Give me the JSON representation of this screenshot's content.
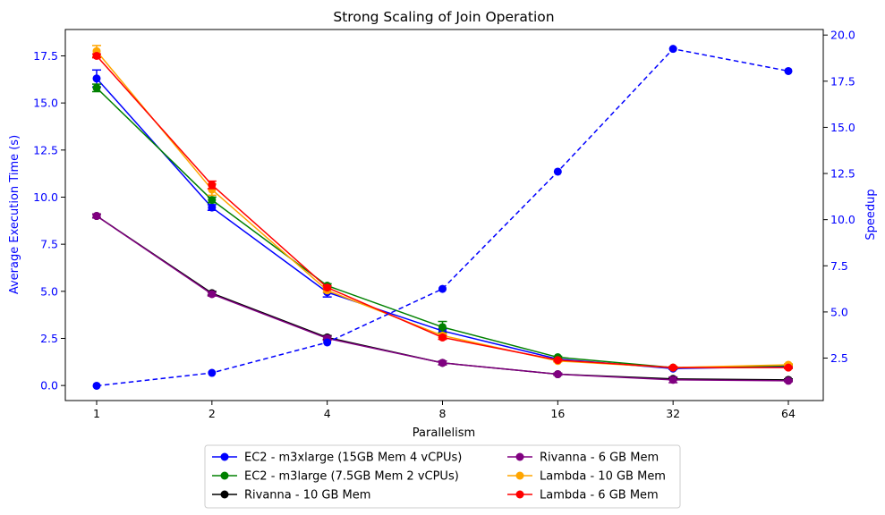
{
  "chart_data": {
    "type": "line",
    "title": "Strong Scaling of Join Operation",
    "xlabel": "Parallelism",
    "ylabel": "Average Execution Time (s)",
    "y2label": "Speedup",
    "x": [
      1,
      2,
      4,
      8,
      16,
      32,
      64
    ],
    "x_tick_labels": [
      "1",
      "2",
      "4",
      "8",
      "16",
      "32",
      "64"
    ],
    "x_scale": "log2",
    "ylim": [
      -0.8,
      18.9
    ],
    "y_ticks": [
      0.0,
      2.5,
      5.0,
      7.5,
      10.0,
      12.5,
      15.0,
      17.5
    ],
    "y_tick_labels": [
      "0.0",
      "2.5",
      "5.0",
      "7.5",
      "10.0",
      "12.5",
      "15.0",
      "17.5"
    ],
    "y2lim": [
      0.2,
      20.3
    ],
    "y2_ticks": [
      2.5,
      5.0,
      7.5,
      10.0,
      12.5,
      15.0,
      17.5,
      20.0
    ],
    "y2_tick_labels": [
      "2.5",
      "5.0",
      "7.5",
      "10.0",
      "12.5",
      "15.0",
      "17.5",
      "20.0"
    ],
    "grid": false,
    "legend_position": "bottom-center-outside",
    "series": [
      {
        "name": "EC2 - m3xlarge (15GB Mem 4 vCPUs)",
        "color": "#0000ff",
        "values": [
          16.3,
          9.45,
          4.95,
          2.9,
          1.4,
          0.9,
          1.0
        ],
        "errors": [
          0.45,
          0.15,
          0.25,
          0.1,
          0.05,
          0.05,
          0.05
        ]
      },
      {
        "name": "EC2 - m3large (7.5GB Mem 2 vCPUs)",
        "color": "#008000",
        "values": [
          15.8,
          9.85,
          5.3,
          3.1,
          1.5,
          0.95,
          1.05
        ],
        "errors": [
          0.2,
          0.15,
          0.1,
          0.3,
          0.05,
          0.05,
          0.05
        ]
      },
      {
        "name": "Rivanna - 10 GB Mem",
        "color": "#000000",
        "values": [
          9.0,
          4.9,
          2.55,
          1.2,
          0.6,
          0.35,
          0.3
        ],
        "errors": [
          0.1,
          0.1,
          0.1,
          0.1,
          0.05,
          0.05,
          0.05
        ]
      },
      {
        "name": "Rivanna - 6 GB Mem",
        "color": "#800080",
        "values": [
          9.0,
          4.85,
          2.5,
          1.2,
          0.6,
          0.3,
          0.25
        ],
        "errors": [
          0.1,
          0.1,
          0.1,
          0.1,
          0.05,
          0.15,
          0.05
        ]
      },
      {
        "name": "Lambda - 10 GB Mem",
        "color": "#ffa500",
        "values": [
          17.75,
          10.4,
          5.05,
          2.65,
          1.3,
          0.95,
          1.1
        ],
        "errors": [
          0.3,
          0.3,
          0.1,
          0.1,
          0.05,
          0.05,
          0.05
        ]
      },
      {
        "name": "Lambda - 6 GB Mem",
        "color": "#ff0000",
        "values": [
          17.5,
          10.65,
          5.2,
          2.55,
          1.35,
          0.95,
          0.95
        ],
        "errors": [
          0.1,
          0.2,
          0.1,
          0.1,
          0.05,
          0.05,
          0.05
        ]
      }
    ],
    "speedup": {
      "name": "Speedup",
      "color": "#0000ff",
      "style": "dashed",
      "values": [
        1.0,
        1.7,
        3.35,
        6.25,
        12.6,
        19.25,
        18.05
      ]
    }
  }
}
